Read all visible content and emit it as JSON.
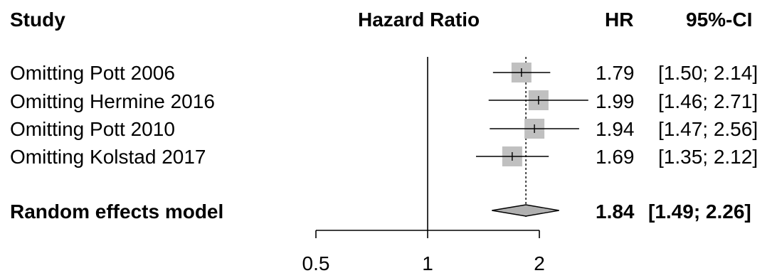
{
  "headers": {
    "study": "Study",
    "plot": "Hazard Ratio",
    "hr": "HR",
    "ci": "95%-CI"
  },
  "chart_data": {
    "type": "forest",
    "x_scale": "log",
    "reference_line": 1,
    "pooled_dotted_line": 1.84,
    "x_ticks": [
      {
        "value": 0.5,
        "label": "0.5"
      },
      {
        "value": 1,
        "label": "1"
      },
      {
        "value": 2,
        "label": "2"
      }
    ],
    "studies": [
      {
        "label": "Omitting Pott 2006",
        "hr": 1.79,
        "lower": 1.5,
        "upper": 2.14,
        "hr_text": "1.79",
        "ci_text": "[1.50; 2.14]"
      },
      {
        "label": "Omitting Hermine 2016",
        "hr": 1.99,
        "lower": 1.46,
        "upper": 2.71,
        "hr_text": "1.99",
        "ci_text": "[1.46; 2.71]"
      },
      {
        "label": "Omitting Pott 2010",
        "hr": 1.94,
        "lower": 1.47,
        "upper": 2.56,
        "hr_text": "1.94",
        "ci_text": "[1.47; 2.56]"
      },
      {
        "label": "Omitting Kolstad 2017",
        "hr": 1.69,
        "lower": 1.35,
        "upper": 2.12,
        "hr_text": "1.69",
        "ci_text": "[1.35; 2.12]"
      }
    ],
    "summary": {
      "label": "Random effects model",
      "hr": 1.84,
      "lower": 1.49,
      "upper": 2.26,
      "hr_text": "1.84",
      "ci_text": "[1.49; 2.26]"
    },
    "colors": {
      "box": "#c0c0c0",
      "diamond": "#b0b0b0",
      "line": "#000000"
    }
  }
}
